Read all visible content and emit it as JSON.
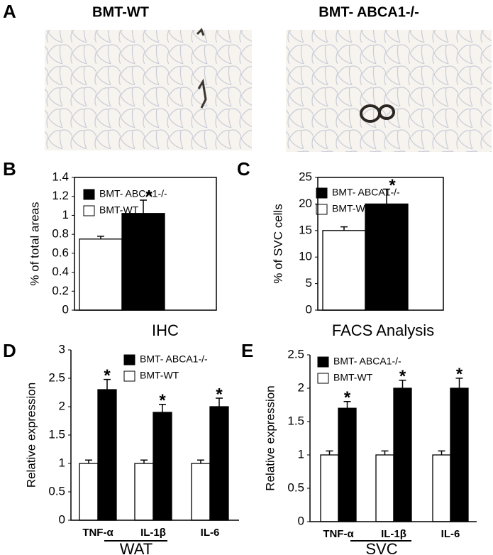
{
  "panel_a": {
    "letter": "A",
    "left_title": "BMT-WT",
    "right_title": "BMT- ABCA1-/-"
  },
  "chart_data": [
    {
      "type": "bar",
      "letter": "B",
      "ylabel": "% of total areas",
      "xlabel": "IHC",
      "star": "*",
      "ylim": [
        0,
        1.4
      ],
      "yticks": [
        0,
        0.2,
        0.4,
        0.6,
        0.8,
        1,
        1.2,
        1.4
      ],
      "series": [
        {
          "name": "BMT-WT",
          "color": "#ffffff",
          "values": [
            0.75
          ],
          "errors": [
            0.03
          ]
        },
        {
          "name": "BMT- ABCA1-/-",
          "color": "#000000",
          "values": [
            1.02
          ],
          "errors": [
            0.14
          ]
        }
      ]
    },
    {
      "type": "bar",
      "letter": "C",
      "ylabel": "% of SVC cells",
      "xlabel": "FACS Analysis",
      "star": "*",
      "ylim": [
        0,
        25
      ],
      "yticks": [
        0,
        5,
        10,
        15,
        20,
        25
      ],
      "series": [
        {
          "name": "BMT-WT",
          "color": "#ffffff",
          "values": [
            15
          ],
          "errors": [
            0.7
          ]
        },
        {
          "name": "BMT- ABCA1-/-",
          "color": "#000000",
          "values": [
            20
          ],
          "errors": [
            2.8
          ]
        }
      ]
    },
    {
      "type": "bar",
      "letter": "D",
      "ylabel": "Relative expression",
      "xlabel": "WAT",
      "star": "*",
      "categories": [
        "TNF-α",
        "IL-1β",
        "IL-6"
      ],
      "ylim": [
        0,
        3
      ],
      "yticks": [
        0,
        0.5,
        1,
        1.5,
        2,
        2.5,
        3
      ],
      "series": [
        {
          "name": "BMT-WT",
          "color": "#ffffff",
          "values": [
            1,
            1,
            1
          ],
          "errors": [
            0.06,
            0.06,
            0.06
          ]
        },
        {
          "name": "BMT- ABCA1-/-",
          "color": "#000000",
          "values": [
            2.3,
            1.9,
            2.0
          ],
          "errors": [
            0.18,
            0.14,
            0.15
          ]
        }
      ]
    },
    {
      "type": "bar",
      "letter": "E",
      "ylabel": "Relative expression",
      "xlabel": "SVC",
      "star": "*",
      "categories": [
        "TNF-α",
        "IL-1β",
        "IL-6"
      ],
      "ylim": [
        0,
        2.5
      ],
      "yticks": [
        0,
        0.5,
        1,
        1.5,
        2,
        2.5
      ],
      "series": [
        {
          "name": "BMT-WT",
          "color": "#ffffff",
          "values": [
            1,
            1,
            1
          ],
          "errors": [
            0.06,
            0.06,
            0.06
          ]
        },
        {
          "name": "BMT- ABCA1-/-",
          "color": "#000000",
          "values": [
            1.7,
            2.0,
            2.0
          ],
          "errors": [
            0.1,
            0.12,
            0.15
          ]
        }
      ]
    }
  ]
}
